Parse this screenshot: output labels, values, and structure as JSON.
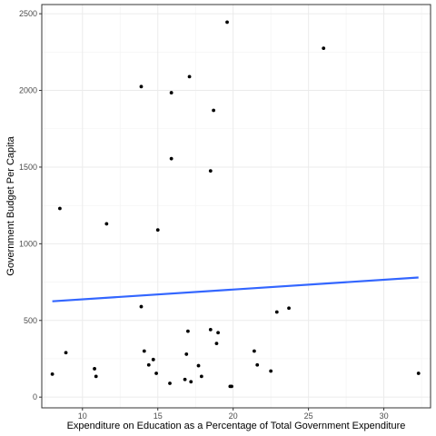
{
  "chart_data": {
    "type": "scatter",
    "xlabel": "Expenditure on Education as a Percentage of Total Government Expenditure",
    "ylabel": "Government Budget Per Capita",
    "xlim": [
      7.3,
      33.1
    ],
    "ylim": [
      -70,
      2560
    ],
    "x_ticks": [
      10,
      15,
      20,
      25,
      30
    ],
    "y_ticks": [
      0,
      500,
      1000,
      1500,
      2000,
      2500
    ],
    "grid": true,
    "theme": "bw",
    "point_color": "#000000",
    "trend_color": "#3366ff",
    "points": [
      {
        "x": 8.0,
        "y": 150
      },
      {
        "x": 8.5,
        "y": 1230
      },
      {
        "x": 8.9,
        "y": 290
      },
      {
        "x": 10.8,
        "y": 185
      },
      {
        "x": 10.9,
        "y": 135
      },
      {
        "x": 11.6,
        "y": 1130
      },
      {
        "x": 13.9,
        "y": 2025
      },
      {
        "x": 13.9,
        "y": 590
      },
      {
        "x": 14.1,
        "y": 300
      },
      {
        "x": 14.4,
        "y": 210
      },
      {
        "x": 14.7,
        "y": 245
      },
      {
        "x": 14.9,
        "y": 155
      },
      {
        "x": 15.0,
        "y": 1090
      },
      {
        "x": 15.8,
        "y": 90
      },
      {
        "x": 15.9,
        "y": 1555
      },
      {
        "x": 15.9,
        "y": 1985
      },
      {
        "x": 16.8,
        "y": 115
      },
      {
        "x": 16.9,
        "y": 280
      },
      {
        "x": 17.0,
        "y": 430
      },
      {
        "x": 17.1,
        "y": 2090
      },
      {
        "x": 17.2,
        "y": 100
      },
      {
        "x": 17.7,
        "y": 205
      },
      {
        "x": 17.9,
        "y": 135
      },
      {
        "x": 18.5,
        "y": 1475
      },
      {
        "x": 18.5,
        "y": 440
      },
      {
        "x": 18.7,
        "y": 1870
      },
      {
        "x": 18.9,
        "y": 350
      },
      {
        "x": 19.0,
        "y": 420
      },
      {
        "x": 19.6,
        "y": 2445
      },
      {
        "x": 19.8,
        "y": 70
      },
      {
        "x": 19.9,
        "y": 70
      },
      {
        "x": 21.4,
        "y": 300
      },
      {
        "x": 21.6,
        "y": 210
      },
      {
        "x": 22.5,
        "y": 170
      },
      {
        "x": 22.9,
        "y": 555
      },
      {
        "x": 23.7,
        "y": 580
      },
      {
        "x": 26.0,
        "y": 2275
      },
      {
        "x": 32.3,
        "y": 155
      }
    ],
    "trend_line": {
      "x": [
        8.0,
        32.3
      ],
      "y": [
        625,
        780
      ]
    }
  }
}
